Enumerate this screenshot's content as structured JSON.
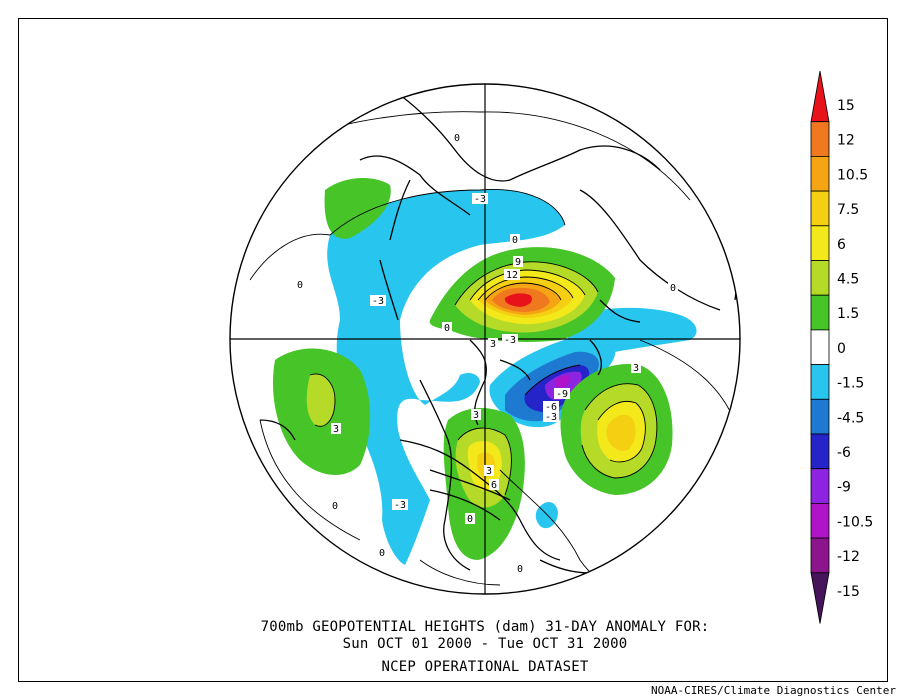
{
  "figure": {
    "title_line1": "700mb GEOPOTENTIAL HEIGHTS (dam)   31-DAY ANOMALY FOR:",
    "title_line2": "Sun OCT 01 2000 - Tue OCT 31 2000",
    "dataset": "NCEP OPERATIONAL DATASET",
    "credit": "NOAA-CIRES/Climate Diagnostics Center"
  },
  "colorbar": {
    "tick_labels": [
      "15",
      "12",
      "10.5",
      "7.5",
      "6",
      "4.5",
      "1.5",
      "0",
      "-1.5",
      "-4.5",
      "-6",
      "-9",
      "-10.5",
      "-12",
      "-15"
    ],
    "colors": [
      "#e8121a",
      "#f0781e",
      "#f5a514",
      "#f5cf12",
      "#f2e81a",
      "#b5db28",
      "#46c428",
      "#ffffff",
      "#28c5ee",
      "#1e7ad0",
      "#2424c8",
      "#8c24e0",
      "#b014c8",
      "#8c148c",
      "#46145a"
    ]
  },
  "contour_labels": [
    "0",
    "0",
    "0",
    "0",
    "0",
    "0",
    "0",
    "0",
    "0",
    "3",
    "3",
    "3",
    "3",
    "3",
    "6",
    "9",
    "12",
    "-3",
    "-3",
    "-3",
    "-3",
    "-3",
    "-6",
    "-9"
  ]
}
